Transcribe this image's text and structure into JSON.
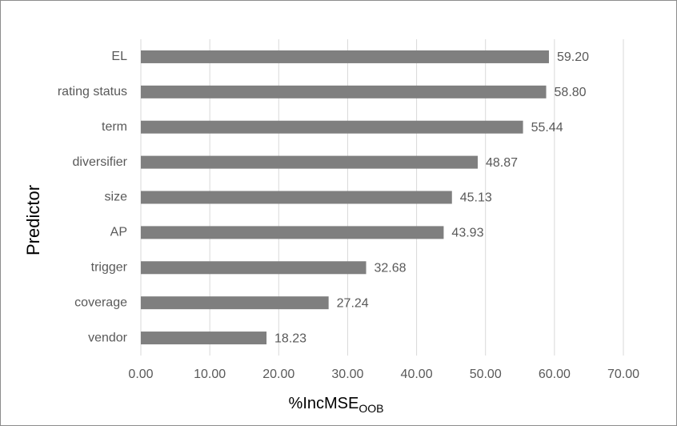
{
  "chart_data": {
    "type": "hbar",
    "xlabel": "%IncMSE",
    "xlabel_sub": "OOB",
    "ylabel": "Predictor",
    "categories": [
      "EL",
      "rating status",
      "term",
      "diversifier",
      "size",
      "AP",
      "trigger",
      "coverage",
      "vendor"
    ],
    "values": [
      59.2,
      58.8,
      55.44,
      48.87,
      45.13,
      43.93,
      32.68,
      27.24,
      18.23
    ],
    "value_labels": [
      "59.20",
      "58.80",
      "55.44",
      "48.87",
      "45.13",
      "43.93",
      "32.68",
      "27.24",
      "18.23"
    ],
    "color": "#7f7f7f",
    "xlim": [
      0,
      70
    ],
    "xticks": [
      {
        "value": 0,
        "label": "0.00"
      },
      {
        "value": 10,
        "label": "10.00"
      },
      {
        "value": 20,
        "label": "20.00"
      },
      {
        "value": 30,
        "label": "30.00"
      },
      {
        "value": 40,
        "label": "40.00"
      },
      {
        "value": 50,
        "label": "50.00"
      },
      {
        "value": 60,
        "label": "60.00"
      },
      {
        "value": 70,
        "label": "70.00"
      }
    ],
    "grid": true
  }
}
